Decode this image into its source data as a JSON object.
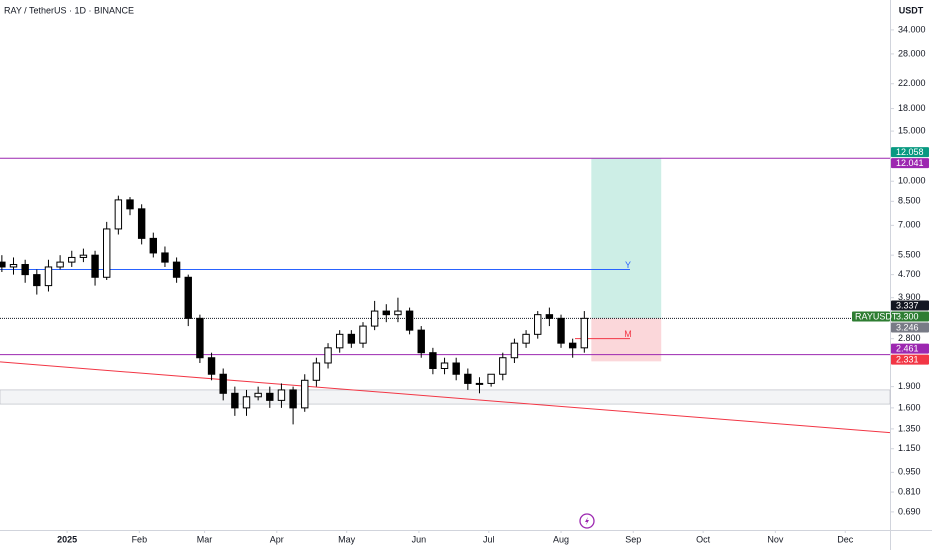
{
  "chart_data": {
    "type": "candlestick",
    "title": "RAY / TetherUS · 1D · BINANCE",
    "symbol": "RAYUSDT",
    "y_unit": "USDT",
    "log_scale": true,
    "candle_up_color": "#ffffff",
    "candle_down_color": "#000000",
    "x": [
      -28,
      -23,
      -18,
      -13,
      -8,
      -3,
      2,
      7,
      12,
      17,
      22,
      27,
      32,
      37,
      42,
      47,
      52,
      57,
      62,
      67,
      72,
      77,
      82,
      87,
      92,
      97,
      102,
      107,
      112,
      117,
      122,
      127,
      132,
      137,
      142,
      147,
      152,
      157,
      162,
      167,
      172,
      177,
      182,
      187,
      192,
      197,
      202,
      207,
      212,
      217,
      222
    ],
    "open": [
      5.2,
      5.0,
      5.1,
      4.7,
      4.3,
      5.0,
      5.2,
      5.4,
      5.5,
      4.6,
      6.8,
      8.6,
      8.0,
      6.3,
      5.6,
      5.2,
      4.6,
      3.3,
      2.4,
      2.1,
      1.8,
      1.6,
      1.75,
      1.8,
      1.7,
      1.85,
      1.6,
      2.0,
      2.3,
      2.6,
      2.9,
      2.7,
      3.1,
      3.5,
      3.4,
      3.5,
      3.0,
      2.5,
      2.2,
      2.3,
      2.1,
      1.95,
      1.95,
      2.1,
      2.4,
      2.7,
      2.9,
      3.4,
      3.3,
      2.7,
      2.6
    ],
    "high": [
      5.5,
      5.4,
      5.3,
      4.9,
      5.3,
      5.5,
      5.7,
      5.8,
      5.7,
      7.2,
      8.9,
      8.8,
      8.3,
      6.6,
      5.9,
      5.4,
      4.7,
      3.4,
      2.5,
      2.2,
      1.9,
      1.85,
      1.9,
      1.9,
      1.95,
      1.9,
      2.1,
      2.4,
      2.7,
      3.0,
      3.0,
      3.2,
      3.8,
      3.7,
      3.9,
      3.6,
      3.1,
      2.6,
      2.4,
      2.4,
      2.2,
      2.05,
      2.1,
      2.5,
      2.8,
      3.0,
      3.5,
      3.6,
      3.4,
      2.8,
      3.5
    ],
    "low": [
      4.8,
      4.7,
      4.4,
      4.0,
      4.1,
      4.9,
      5.0,
      5.2,
      4.3,
      4.5,
      6.5,
      7.6,
      6.0,
      5.4,
      5.0,
      4.4,
      3.1,
      2.3,
      2.0,
      1.7,
      1.5,
      1.5,
      1.7,
      1.6,
      1.6,
      1.4,
      1.55,
      1.9,
      2.2,
      2.5,
      2.6,
      2.6,
      3.0,
      3.2,
      3.2,
      2.9,
      2.4,
      2.1,
      2.1,
      2.0,
      1.85,
      1.8,
      1.9,
      2.0,
      2.3,
      2.6,
      2.8,
      3.1,
      2.6,
      2.4,
      2.5
    ],
    "close": [
      5.0,
      5.1,
      4.7,
      4.3,
      5.0,
      5.2,
      5.4,
      5.5,
      4.6,
      6.8,
      8.6,
      8.0,
      6.3,
      5.6,
      5.2,
      4.6,
      3.3,
      2.4,
      2.1,
      1.8,
      1.6,
      1.75,
      1.8,
      1.7,
      1.85,
      1.6,
      2.0,
      2.3,
      2.6,
      2.9,
      2.7,
      3.1,
      3.5,
      3.4,
      3.5,
      3.0,
      2.5,
      2.2,
      2.3,
      2.1,
      1.95,
      1.95,
      2.1,
      2.4,
      2.7,
      2.9,
      3.4,
      3.3,
      2.7,
      2.6,
      3.3
    ],
    "xlim": [
      -28.8,
      353.2
    ],
    "xticks": [
      {
        "value": 0,
        "label": "2025"
      },
      {
        "value": 31,
        "label": "Feb"
      },
      {
        "value": 59,
        "label": "Mar"
      },
      {
        "value": 90,
        "label": "Apr"
      },
      {
        "value": 120,
        "label": "May"
      },
      {
        "value": 151,
        "label": "Jun"
      },
      {
        "value": 181,
        "label": "Jul"
      },
      {
        "value": 212,
        "label": "Aug"
      },
      {
        "value": 243,
        "label": "Sep"
      },
      {
        "value": 273,
        "label": "Oct"
      },
      {
        "value": 304,
        "label": "Nov"
      },
      {
        "value": 334,
        "label": "Dec"
      }
    ],
    "ylim": [
      0.596,
      43.3
    ],
    "yticks": [
      {
        "value": 34,
        "label": "34.000"
      },
      {
        "value": 28,
        "label": "28.000"
      },
      {
        "value": 22,
        "label": "22.000"
      },
      {
        "value": 18,
        "label": "18.000"
      },
      {
        "value": 15,
        "label": "15.000"
      },
      {
        "value": 10,
        "label": "10.000"
      },
      {
        "value": 8.5,
        "label": "8.500"
      },
      {
        "value": 7,
        "label": "7.000"
      },
      {
        "value": 5.5,
        "label": "5.500"
      },
      {
        "value": 4.7,
        "label": "4.700"
      },
      {
        "value": 3.9,
        "label": "3.900"
      },
      {
        "value": 2.8,
        "label": "2.800"
      },
      {
        "value": 1.9,
        "label": "1.900"
      },
      {
        "value": 1.6,
        "label": "1.600"
      },
      {
        "value": 1.35,
        "label": "1.350"
      },
      {
        "value": 1.15,
        "label": "1.150"
      },
      {
        "value": 0.95,
        "label": "0.950"
      },
      {
        "value": 0.81,
        "label": "0.810"
      },
      {
        "value": 0.69,
        "label": "0.690"
      }
    ],
    "hlines": [
      {
        "value": 12.041,
        "color": "#9c27b0"
      },
      {
        "value": 2.461,
        "color": "#9c27b0"
      },
      {
        "value": 3.3,
        "color": "#131722",
        "dotted": true
      }
    ],
    "segments": [
      {
        "value": 4.9,
        "label": "Y",
        "color": "#2962ff",
        "x": [
          -28.8,
          241.6
        ]
      },
      {
        "value": 2.8,
        "label": "M",
        "color": "#f23645",
        "x": [
          218,
          241.6
        ]
      }
    ],
    "zone": {
      "low": 1.65,
      "high": 1.85,
      "color": "#e0e3eb"
    },
    "trendline": {
      "x": [
        -28.8,
        353.2
      ],
      "y": [
        2.32,
        1.31
      ],
      "color": "#f23645"
    },
    "position": {
      "x": [
        225,
        255
      ],
      "target": 12.058,
      "entry": 3.3,
      "stop": 2.331,
      "profit_color": "#cdeee6",
      "loss_color": "#fbd7da"
    },
    "price_labels": [
      {
        "value": 12.058,
        "label": "12.058",
        "color": "#089981"
      },
      {
        "value": 12.041,
        "label": "12.041",
        "color": "#9c27b0"
      },
      {
        "value": 3.337,
        "label": "3.337",
        "color": "#131722"
      },
      {
        "value": 3.3,
        "label": "3.300",
        "color": "#2e7d32",
        "symbol": true
      },
      {
        "value": 3.246,
        "label": "3.246",
        "color": "#787b86"
      },
      {
        "value": 2.461,
        "label": "2.461",
        "color": "#9c27b0"
      },
      {
        "value": 2.331,
        "label": "2.331",
        "color": "#f23645"
      }
    ]
  }
}
